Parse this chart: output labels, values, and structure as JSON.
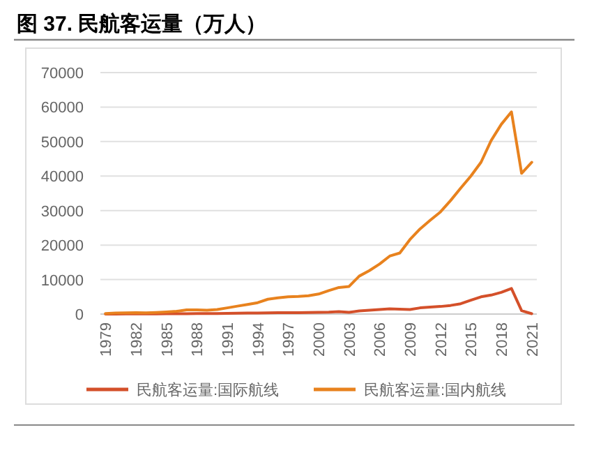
{
  "chart_data": {
    "type": "line",
    "title": "图 37. 民航客运量（万人）",
    "categories": [
      "1979",
      null,
      null,
      "1982",
      null,
      null,
      "1985",
      null,
      null,
      "1988",
      null,
      null,
      "1991",
      null,
      null,
      "1994",
      null,
      null,
      "1997",
      null,
      null,
      "2000",
      null,
      null,
      "2003",
      null,
      null,
      "2006",
      null,
      null,
      "2009",
      null,
      null,
      "2012",
      null,
      null,
      "2015",
      null,
      null,
      "2018",
      null,
      null,
      "2021"
    ],
    "series": [
      {
        "name": "民航客运量:国际航线",
        "color": "#d4502a",
        "values": [
          10,
          20,
          30,
          40,
          50,
          60,
          80,
          100,
          120,
          140,
          150,
          170,
          200,
          250,
          300,
          300,
          350,
          400,
          400,
          400,
          450,
          500,
          550,
          700,
          500,
          900,
          1100,
          1300,
          1500,
          1400,
          1300,
          1800,
          2000,
          2200,
          2500,
          3000,
          4000,
          5000,
          5500,
          6300,
          7400,
          1000,
          100
        ]
      },
      {
        "name": "民航客运量:国内航线",
        "color": "#e8821e",
        "values": [
          150,
          300,
          350,
          400,
          350,
          450,
          600,
          800,
          1200,
          1200,
          1100,
          1300,
          1800,
          2300,
          2800,
          3300,
          4300,
          4700,
          5000,
          5100,
          5300,
          5800,
          6800,
          7700,
          8000,
          11000,
          12600,
          14500,
          16800,
          17700,
          21600,
          24700,
          27200,
          29600,
          32900,
          36500,
          40000,
          44000,
          50300,
          55000,
          58600,
          40800,
          44000
        ]
      }
    ],
    "ylim": [
      0,
      70000
    ],
    "yticks": [
      0,
      10000,
      20000,
      30000,
      40000,
      50000,
      60000,
      70000
    ],
    "grid": "y",
    "legend": "bottom",
    "marker": "none",
    "line_style": "solid"
  }
}
